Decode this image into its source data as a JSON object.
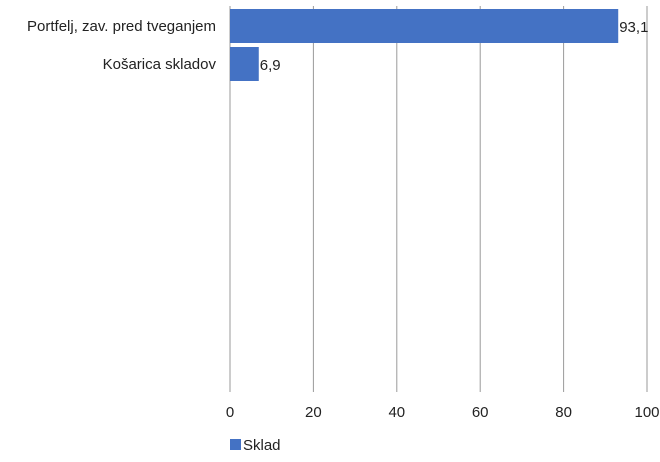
{
  "chart_data": {
    "type": "bar",
    "orientation": "horizontal",
    "categories": [
      "Portfelj, zav. pred tveganjem",
      "Košarica skladov"
    ],
    "series": [
      {
        "name": "Sklad",
        "values": [
          93.1,
          6.9
        ],
        "color": "#4472C4"
      }
    ],
    "data_labels": [
      "93,1",
      "6,9"
    ],
    "x_ticks": [
      0,
      20,
      40,
      60,
      80,
      100
    ],
    "xlim": [
      0,
      100
    ],
    "title": "",
    "xlabel": "",
    "ylabel": "",
    "grid": "vertical",
    "legend_position": "bottom-left"
  }
}
